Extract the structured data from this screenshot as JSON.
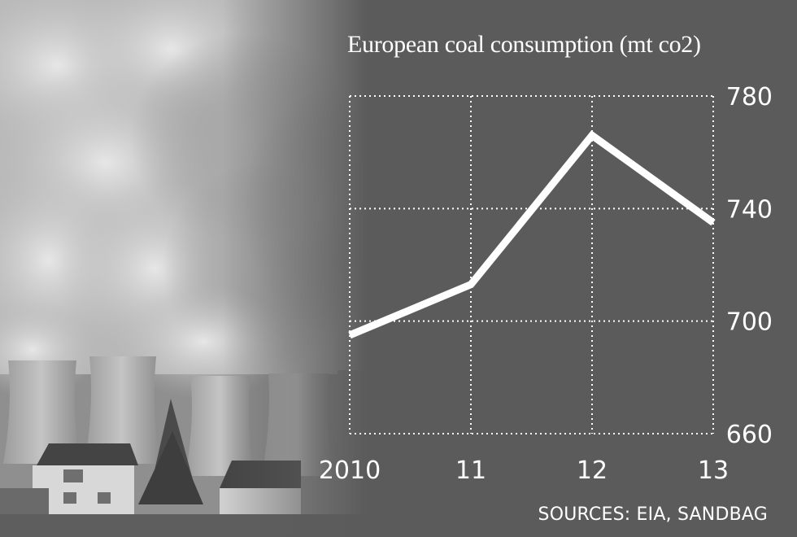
{
  "chart_data": {
    "type": "line",
    "title": "European coal consumption (mt co2)",
    "x": [
      "2010",
      "11",
      "12",
      "13"
    ],
    "series": [
      {
        "values": [
          695,
          713,
          766,
          735
        ]
      }
    ],
    "ylim": [
      660,
      780
    ],
    "yticks": [
      780,
      740,
      700,
      660
    ],
    "y_axis_position": "right",
    "grid": "dotted",
    "line_color": "#ffffff"
  },
  "source": "SOURCES: EIA, SANDBAG",
  "background_photo": "power-station-cooling-towers"
}
